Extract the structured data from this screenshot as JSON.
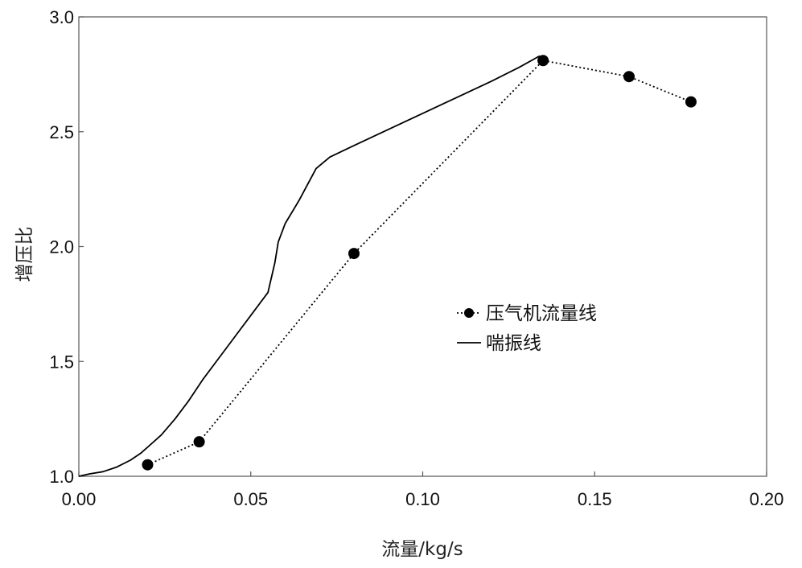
{
  "chart_data": {
    "type": "line",
    "xlabel": "流量/kg/s",
    "ylabel": "增压比",
    "xlim": [
      0.0,
      0.2
    ],
    "ylim": [
      1.0,
      3.0
    ],
    "x_ticks": [
      0.0,
      0.05,
      0.1,
      0.15,
      0.2
    ],
    "x_tick_labels": [
      "0.00",
      "0.05",
      "0.10",
      "0.15",
      "0.20"
    ],
    "y_ticks": [
      1.0,
      1.5,
      2.0,
      2.5,
      3.0
    ],
    "y_tick_labels": [
      "1.0",
      "1.5",
      "2.0",
      "2.5",
      "3.0"
    ],
    "grid": false,
    "legend_position": "right-middle",
    "series": [
      {
        "name": "压气机流量线",
        "style": "dotted-markers",
        "color": "#000000",
        "x": [
          0.02,
          0.035,
          0.08,
          0.135,
          0.16,
          0.178
        ],
        "y": [
          1.05,
          1.15,
          1.97,
          2.81,
          2.74,
          2.63
        ]
      },
      {
        "name": "喘振线",
        "style": "solid",
        "color": "#000000",
        "x": [
          0.0,
          0.003,
          0.007,
          0.011,
          0.015,
          0.018,
          0.021,
          0.024,
          0.028,
          0.032,
          0.036,
          0.041,
          0.046,
          0.051,
          0.055,
          0.057,
          0.058,
          0.06,
          0.064,
          0.069,
          0.073,
          0.08,
          0.09,
          0.1,
          0.11,
          0.12,
          0.128,
          0.134
        ],
        "y": [
          1.0,
          1.01,
          1.02,
          1.04,
          1.07,
          1.1,
          1.14,
          1.18,
          1.25,
          1.33,
          1.42,
          1.52,
          1.62,
          1.72,
          1.8,
          1.93,
          2.02,
          2.1,
          2.2,
          2.34,
          2.39,
          2.44,
          2.51,
          2.58,
          2.65,
          2.72,
          2.78,
          2.83
        ]
      }
    ]
  }
}
